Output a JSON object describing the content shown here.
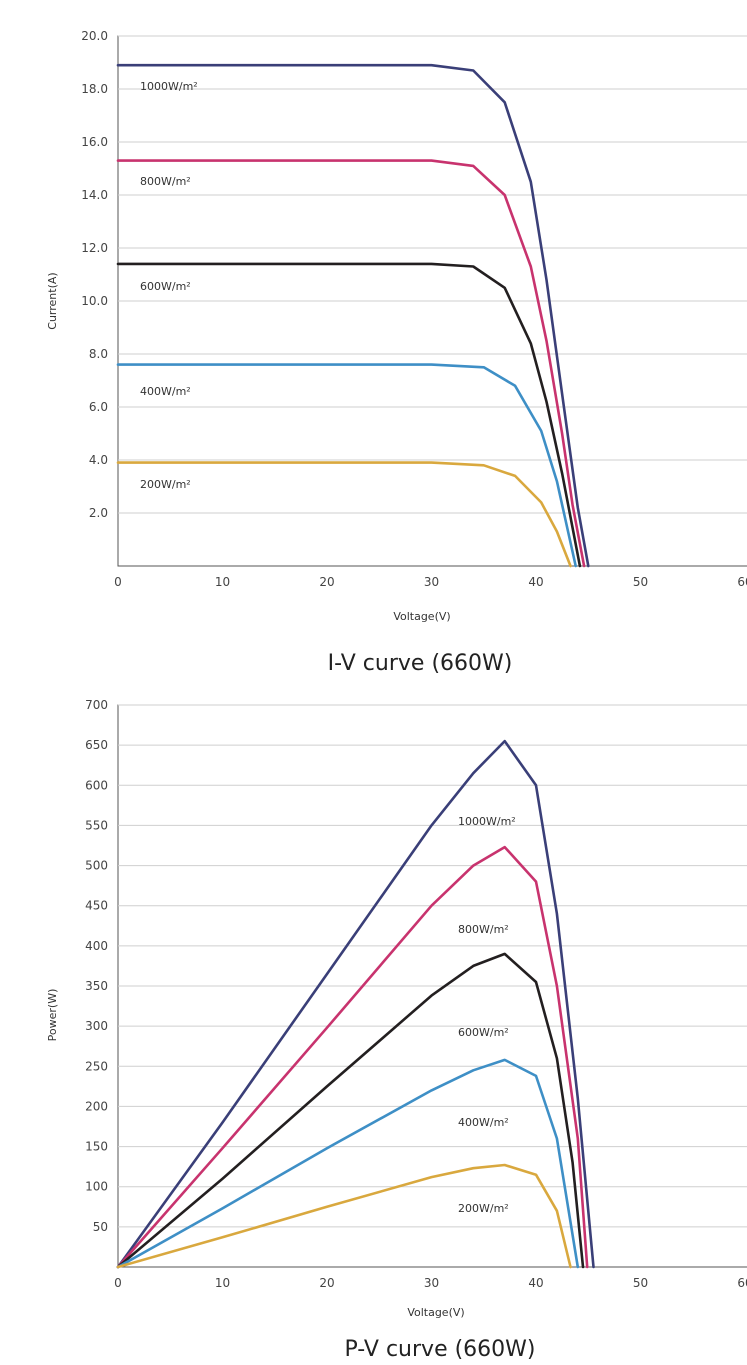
{
  "charts": [
    {
      "title": "I-V curve (660W)",
      "xlabel": "Voltage(V)",
      "ylabel": "Current(A)",
      "xticks": [
        "0",
        "10",
        "20",
        "30",
        "40",
        "50",
        "60"
      ],
      "yticks": [
        "20.0",
        "18.0",
        "16.0",
        "14.0",
        "12.0",
        "10.0",
        "8.0",
        "6.0",
        "4.0",
        "2.0"
      ],
      "series": [
        {
          "name": "1000W/m²",
          "color": "#3a3f78"
        },
        {
          "name": "800W/m²",
          "color": "#c8336e"
        },
        {
          "name": "600W/m²",
          "color": "#231f20"
        },
        {
          "name": "400W/m²",
          "color": "#3e8fc6"
        },
        {
          "name": "200W/m²",
          "color": "#d9a83e"
        }
      ]
    },
    {
      "title": "P-V curve (660W)",
      "xlabel": "Voltage(V)",
      "ylabel": "Power(W)",
      "xticks": [
        "0",
        "10",
        "20",
        "30",
        "40",
        "50",
        "60"
      ],
      "yticks": [
        "700",
        "650",
        "600",
        "550",
        "500",
        "450",
        "400",
        "350",
        "300",
        "250",
        "200",
        "150",
        "100",
        "50"
      ],
      "series": [
        {
          "name": "1000W/m²",
          "color": "#3a3f78"
        },
        {
          "name": "800W/m²",
          "color": "#c8336e"
        },
        {
          "name": "600W/m²",
          "color": "#231f20"
        },
        {
          "name": "400W/m²",
          "color": "#3e8fc6"
        },
        {
          "name": "200W/m²",
          "color": "#d9a83e"
        }
      ]
    }
  ],
  "chart_data": [
    {
      "type": "line",
      "title": "I-V curve (660W)",
      "xlabel": "Voltage(V)",
      "ylabel": "Current(A)",
      "xlim": [
        0,
        60
      ],
      "ylim": [
        0,
        20
      ],
      "grid": true,
      "series": [
        {
          "name": "1000W/m²",
          "x": [
            0,
            30,
            34,
            37,
            39.5,
            41,
            42.5,
            44,
            45
          ],
          "y": [
            18.9,
            18.9,
            18.7,
            17.5,
            14.5,
            10.8,
            6.5,
            2.2,
            0
          ]
        },
        {
          "name": "800W/m²",
          "x": [
            0,
            30,
            34,
            37,
            39.5,
            41,
            42.5,
            43.5,
            44.6
          ],
          "y": [
            15.3,
            15.3,
            15.1,
            14.0,
            11.3,
            8.5,
            5.0,
            2.3,
            0
          ]
        },
        {
          "name": "600W/m²",
          "x": [
            0,
            30,
            34,
            37,
            39.5,
            41,
            42.5,
            44.2
          ],
          "y": [
            11.4,
            11.4,
            11.3,
            10.5,
            8.4,
            6.2,
            3.5,
            0
          ]
        },
        {
          "name": "400W/m²",
          "x": [
            0,
            30,
            35,
            38,
            40.5,
            42,
            43.8
          ],
          "y": [
            7.6,
            7.6,
            7.5,
            6.8,
            5.1,
            3.2,
            0
          ]
        },
        {
          "name": "200W/m²",
          "x": [
            0,
            30,
            35,
            38,
            40.5,
            42,
            43.3
          ],
          "y": [
            3.9,
            3.9,
            3.8,
            3.4,
            2.4,
            1.3,
            0
          ]
        }
      ]
    },
    {
      "type": "line",
      "title": "P-V curve (660W)",
      "xlabel": "Voltage(V)",
      "ylabel": "Power(W)",
      "xlim": [
        0,
        60
      ],
      "ylim": [
        0,
        700
      ],
      "grid": true,
      "series": [
        {
          "name": "1000W/m²",
          "x": [
            0,
            10,
            20,
            30,
            34,
            37,
            40,
            42,
            44,
            45.5
          ],
          "y": [
            0,
            180,
            365,
            550,
            615,
            655,
            600,
            440,
            210,
            0
          ]
        },
        {
          "name": "800W/m²",
          "x": [
            0,
            10,
            20,
            30,
            34,
            37,
            40,
            42,
            44,
            44.9
          ],
          "y": [
            0,
            148,
            298,
            450,
            500,
            523,
            480,
            350,
            160,
            0
          ]
        },
        {
          "name": "600W/m²",
          "x": [
            0,
            10,
            20,
            30,
            34,
            37,
            40,
            42,
            43.5,
            44.5
          ],
          "y": [
            0,
            110,
            225,
            338,
            375,
            390,
            355,
            260,
            130,
            0
          ]
        },
        {
          "name": "400W/m²",
          "x": [
            0,
            10,
            20,
            30,
            34,
            37,
            40,
            42,
            44
          ],
          "y": [
            0,
            73,
            148,
            220,
            245,
            258,
            238,
            160,
            0
          ]
        },
        {
          "name": "200W/m²",
          "x": [
            0,
            10,
            20,
            30,
            34,
            37,
            40,
            42,
            43.3
          ],
          "y": [
            0,
            37,
            75,
            112,
            123,
            127,
            115,
            70,
            0
          ]
        }
      ]
    }
  ]
}
